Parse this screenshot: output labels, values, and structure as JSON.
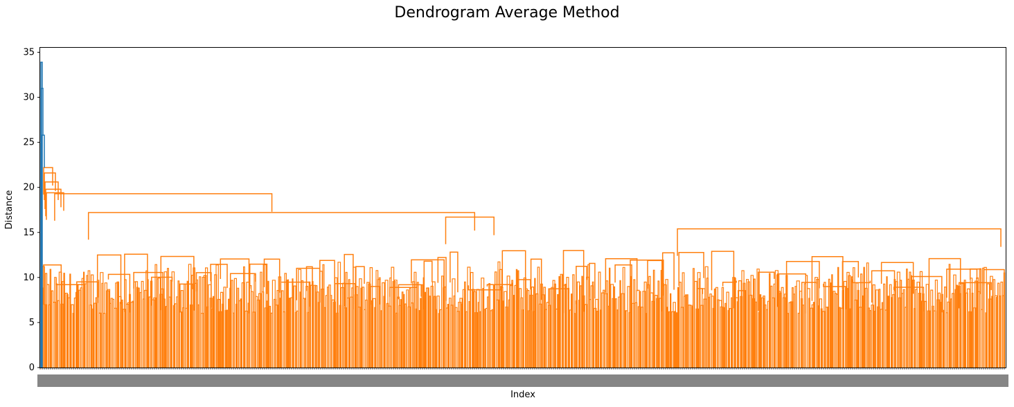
{
  "chart_data": {
    "type": "dendrogram",
    "title": "Dendrogram Average Method",
    "xlabel": "Index",
    "ylabel": "Distance",
    "ylim": [
      0,
      35.5
    ],
    "yticks": [
      0,
      5,
      10,
      15,
      20,
      25,
      30,
      35
    ],
    "grid": false,
    "colors": {
      "above_threshold": "#1f77b4",
      "cluster": "#ff7f0e"
    },
    "top_merge_heights": [
      33.9,
      31.0,
      25.8,
      22.2,
      21.6,
      20.6,
      19.8,
      19.4
    ],
    "major_merges": [
      {
        "distance": 19.3,
        "left_cluster_start_frac": 0.015,
        "right_cluster_start_frac": 0.24
      },
      {
        "distance": 17.2,
        "left_cluster_start_frac": 0.05,
        "right_cluster_start_frac": 0.45
      },
      {
        "distance": 16.7,
        "left_cluster_start_frac": 0.42,
        "right_cluster_start_frac": 0.47
      },
      {
        "distance": 15.4,
        "left_cluster_start_frac": 0.66,
        "right_cluster_start_frac": 0.995
      }
    ],
    "leaf_merge_range": [
      6,
      12
    ]
  }
}
